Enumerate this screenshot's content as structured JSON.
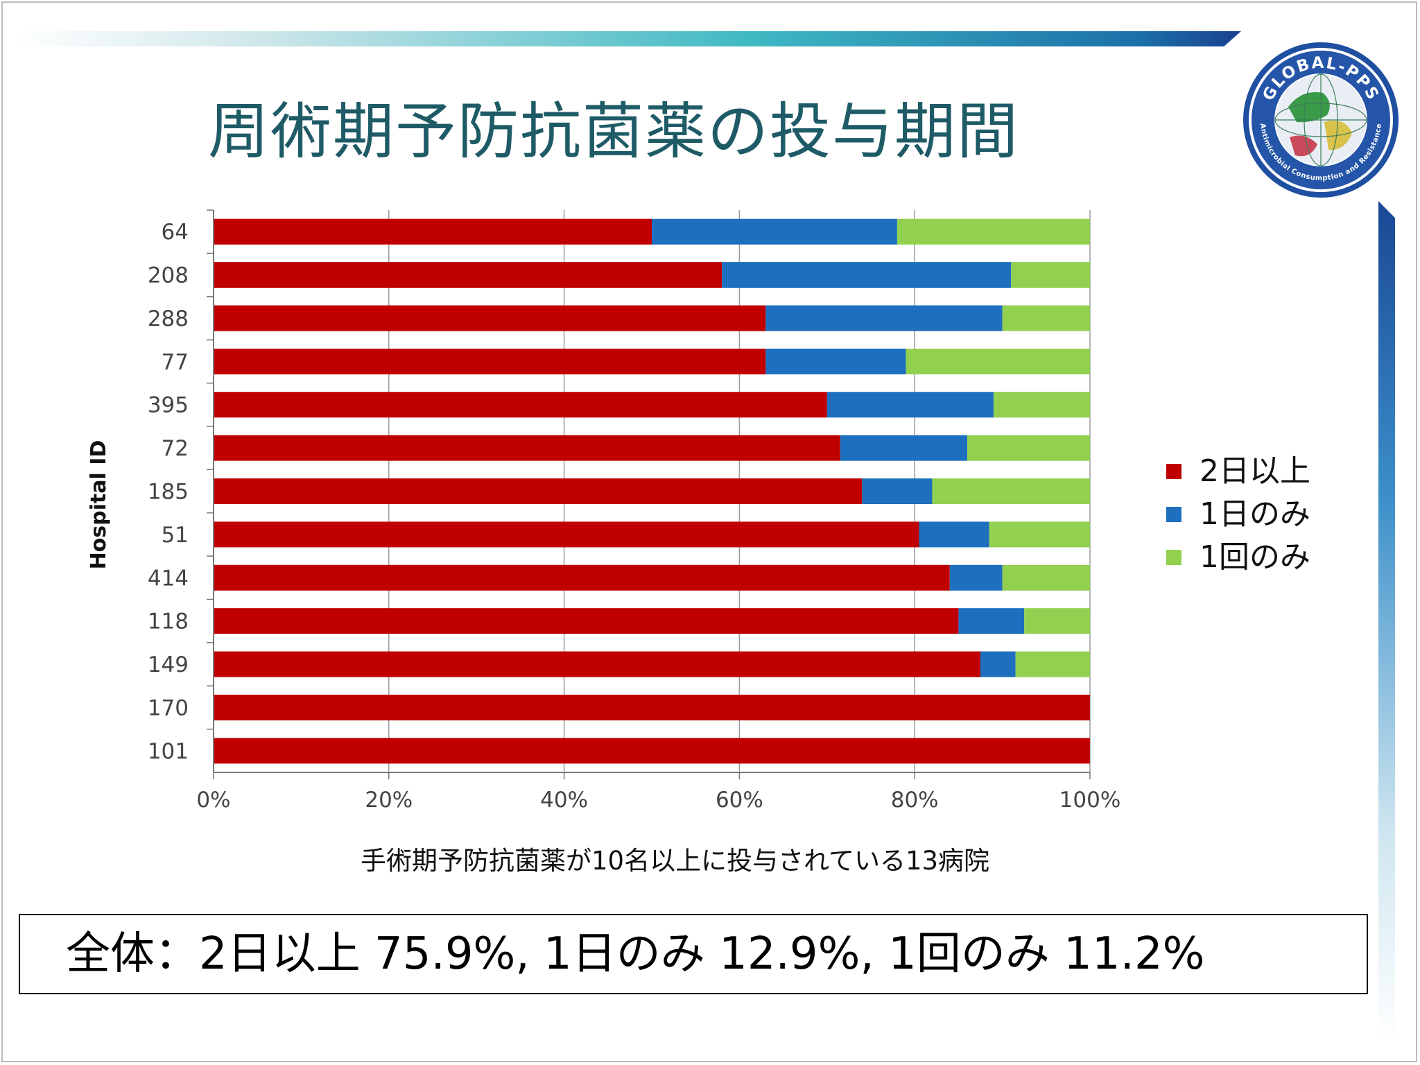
{
  "title": "周術期予防抗菌薬の投与期間",
  "logo": {
    "name": "GLOBAL-PPS",
    "tagline": "Antimicrobial Consumption and Resistance"
  },
  "caption": "手術期予防抗菌薬が10名以上に投与されている13病院",
  "summary": "全体：2日以上 75.9%, 1日のみ 12.9%, 1回のみ 11.2%",
  "colors": {
    "series1": "#c00000",
    "series2": "#1f6fbf",
    "series3": "#92d050",
    "title": "#1e5b66"
  },
  "chart_data": {
    "type": "bar",
    "orientation": "horizontal",
    "stacked": "percent",
    "ylabel": "Hospital ID",
    "xlabel": "",
    "xlim": [
      0,
      100
    ],
    "xticks": [
      "0%",
      "20%",
      "40%",
      "60%",
      "80%",
      "100%"
    ],
    "grid": true,
    "legend_position": "right",
    "categories": [
      "64",
      "208",
      "288",
      "77",
      "395",
      "72",
      "185",
      "51",
      "414",
      "118",
      "149",
      "170",
      "101"
    ],
    "series": [
      {
        "name": "2日以上",
        "color": "#c00000",
        "values": [
          50,
          58,
          63,
          63,
          70,
          71.5,
          74,
          80.5,
          84,
          85,
          87.5,
          100,
          100
        ]
      },
      {
        "name": "1日のみ",
        "color": "#1f6fbf",
        "values": [
          28,
          33,
          27,
          16,
          19,
          14.5,
          8,
          8,
          6,
          7.5,
          4,
          0,
          0
        ]
      },
      {
        "name": "1回のみ",
        "color": "#92d050",
        "values": [
          22,
          9,
          10,
          21,
          11,
          14,
          18,
          11.5,
          10,
          7.5,
          8.5,
          0,
          0
        ]
      }
    ]
  }
}
